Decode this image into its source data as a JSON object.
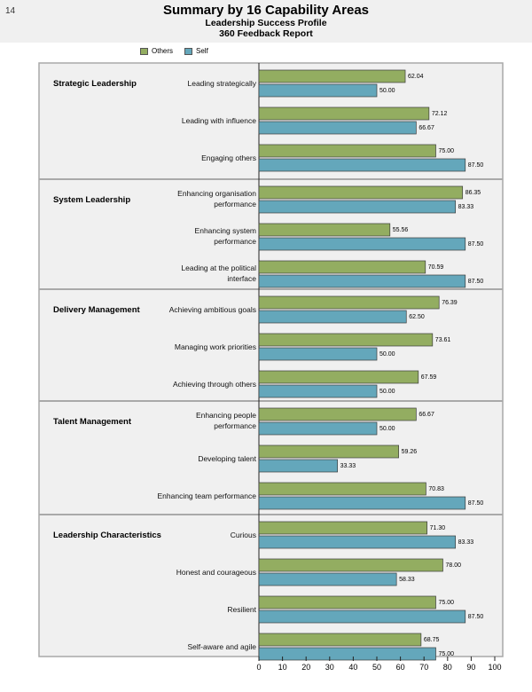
{
  "page_number": "14",
  "colors": {
    "others": "#93ad61",
    "self": "#64a7bb",
    "panel": "#f0f0f0",
    "border": "#a9a9a9"
  },
  "chart_data": {
    "type": "bar",
    "orientation": "horizontal",
    "title": "Summary by 16 Capability Areas",
    "subtitle": "Leadership Success Profile",
    "subtitle2": "360 Feedback Report",
    "legend": [
      "Others",
      "Self"
    ],
    "xlim": [
      0,
      100
    ],
    "xticks": [
      0,
      10,
      20,
      30,
      40,
      50,
      60,
      70,
      80,
      90,
      100
    ],
    "groups": [
      {
        "name": "Strategic Leadership",
        "items": [
          {
            "label": [
              "Leading strategically"
            ],
            "others": 62.04,
            "self": 50.0,
            "others_text": "62.04",
            "self_text": "50.00"
          },
          {
            "label": [
              "Leading with influence"
            ],
            "others": 72.12,
            "self": 66.67,
            "others_text": "72.12",
            "self_text": "66.67"
          },
          {
            "label": [
              "Engaging others"
            ],
            "others": 75.0,
            "self": 87.5,
            "others_text": "75.00",
            "self_text": "87.50"
          }
        ]
      },
      {
        "name": "System Leadership",
        "items": [
          {
            "label": [
              "Enhancing organisation",
              "performance"
            ],
            "others": 86.35,
            "self": 83.33,
            "others_text": "86.35",
            "self_text": "83.33"
          },
          {
            "label": [
              "Enhancing system",
              "performance"
            ],
            "others": 55.56,
            "self": 87.5,
            "others_text": "55.56",
            "self_text": "87.50"
          },
          {
            "label": [
              "Leading at the political",
              "interface"
            ],
            "others": 70.59,
            "self": 87.5,
            "others_text": "70.59",
            "self_text": "87.50"
          }
        ]
      },
      {
        "name": "Delivery Management",
        "items": [
          {
            "label": [
              "Achieving ambitious goals"
            ],
            "others": 76.39,
            "self": 62.5,
            "others_text": "76.39",
            "self_text": "62.50"
          },
          {
            "label": [
              "Managing work priorities"
            ],
            "others": 73.61,
            "self": 50.0,
            "others_text": "73.61",
            "self_text": "50.00"
          },
          {
            "label": [
              "Achieving through others"
            ],
            "others": 67.59,
            "self": 50.0,
            "others_text": "67.59",
            "self_text": "50.00"
          }
        ]
      },
      {
        "name": "Talent Management",
        "items": [
          {
            "label": [
              "Enhancing people",
              "performance"
            ],
            "others": 66.67,
            "self": 50.0,
            "others_text": "66.67",
            "self_text": "50.00"
          },
          {
            "label": [
              "Developing talent"
            ],
            "others": 59.26,
            "self": 33.33,
            "others_text": "59.26",
            "self_text": "33.33"
          },
          {
            "label": [
              "Enhancing team performance"
            ],
            "others": 70.83,
            "self": 87.5,
            "others_text": "70.83",
            "self_text": "87.50"
          }
        ]
      },
      {
        "name": "Leadership Characteristics",
        "items": [
          {
            "label": [
              "Curious"
            ],
            "others": 71.3,
            "self": 83.33,
            "others_text": "71.30",
            "self_text": "83.33"
          },
          {
            "label": [
              "Honest and courageous"
            ],
            "others": 78.0,
            "self": 58.33,
            "others_text": "78.00",
            "self_text": "58.33"
          },
          {
            "label": [
              "Resilient"
            ],
            "others": 75.0,
            "self": 87.5,
            "others_text": "75.00",
            "self_text": "87.50"
          },
          {
            "label": [
              "Self-aware and agile"
            ],
            "others": 68.75,
            "self": 75.0,
            "others_text": "68.75",
            "self_text": "75.00"
          }
        ]
      }
    ]
  }
}
